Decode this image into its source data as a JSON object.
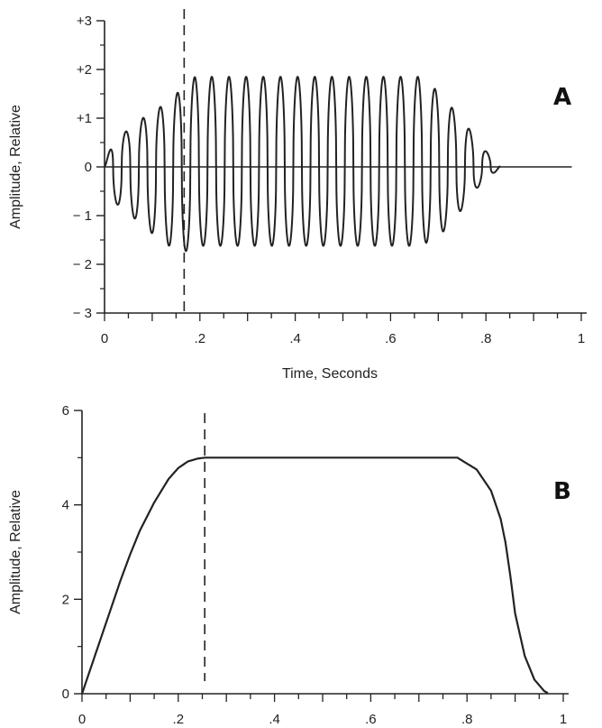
{
  "chart_data": [
    {
      "panel": "A",
      "type": "line",
      "title": "",
      "xlabel": "Time, Seconds",
      "ylabel": "Amplitude, Relative",
      "xlim": [
        0,
        1.0
      ],
      "ylim": [
        -3,
        3
      ],
      "x_ticks": [
        0,
        0.2,
        0.4,
        0.6,
        0.8,
        1.0
      ],
      "x_tick_labels": [
        "0",
        ".2",
        ".4",
        ".6",
        ".8",
        "1"
      ],
      "y_ticks": [
        3,
        2,
        1,
        0,
        -1,
        -2,
        -3
      ],
      "y_tick_labels": [
        "+3",
        "+2",
        "+1",
        "0",
        "− 1",
        "− 2",
        "− 3"
      ],
      "marker_line_x": 0.167,
      "oscillation_period": 0.036,
      "series": [
        {
          "values_described": "oscillation envelope",
          "envelope_x": [
            0.0,
            0.02,
            0.05,
            0.08,
            0.11,
            0.14,
            0.167,
            0.19,
            0.3,
            0.5,
            0.66,
            0.7,
            0.73,
            0.76,
            0.78,
            0.8,
            0.82,
            0.83
          ],
          "envelope_upper": [
            0.0,
            0.62,
            0.75,
            1.0,
            1.18,
            1.4,
            1.65,
            1.85,
            1.85,
            1.85,
            1.85,
            1.55,
            1.2,
            0.85,
            0.55,
            0.32,
            0.15,
            0.0
          ],
          "envelope_lower": [
            0.0,
            -0.72,
            -0.95,
            -1.2,
            -1.45,
            -1.65,
            -1.75,
            -1.62,
            -1.62,
            -1.62,
            -1.62,
            -1.45,
            -1.1,
            -0.75,
            -0.45,
            -0.25,
            -0.1,
            0.0
          ]
        }
      ],
      "grid": false,
      "zero_line": true
    },
    {
      "panel": "B",
      "type": "line",
      "title": "",
      "xlabel": "",
      "ylabel": "Amplitude, Relative",
      "xlim": [
        0,
        1.0
      ],
      "ylim": [
        0,
        6
      ],
      "x_ticks": [
        0,
        0.2,
        0.4,
        0.6,
        0.8,
        1.0
      ],
      "x_tick_labels": [
        "0",
        ".2",
        ".4",
        ".6",
        ".8",
        "1"
      ],
      "y_ticks": [
        0,
        2,
        4,
        6
      ],
      "y_tick_labels": [
        "0",
        "2",
        "4",
        "6"
      ],
      "marker_line_x": 0.255,
      "series": [
        {
          "x": [
            0.0,
            0.02,
            0.05,
            0.08,
            0.1,
            0.12,
            0.15,
            0.18,
            0.2,
            0.22,
            0.24,
            0.255,
            0.3,
            0.5,
            0.7,
            0.78,
            0.82,
            0.85,
            0.87,
            0.88,
            0.89,
            0.9,
            0.92,
            0.94,
            0.96,
            0.97
          ],
          "y": [
            0.0,
            0.6,
            1.5,
            2.4,
            2.95,
            3.45,
            4.05,
            4.55,
            4.78,
            4.92,
            4.98,
            5.0,
            5.0,
            5.0,
            5.0,
            5.0,
            4.75,
            4.3,
            3.7,
            3.2,
            2.5,
            1.7,
            0.8,
            0.3,
            0.06,
            0.0
          ]
        }
      ],
      "grid": false
    }
  ],
  "panels": {
    "a": {
      "letter": "A"
    },
    "b": {
      "letter": "B"
    }
  },
  "colors": {
    "stroke": "#222222",
    "background": "#ffffff"
  }
}
